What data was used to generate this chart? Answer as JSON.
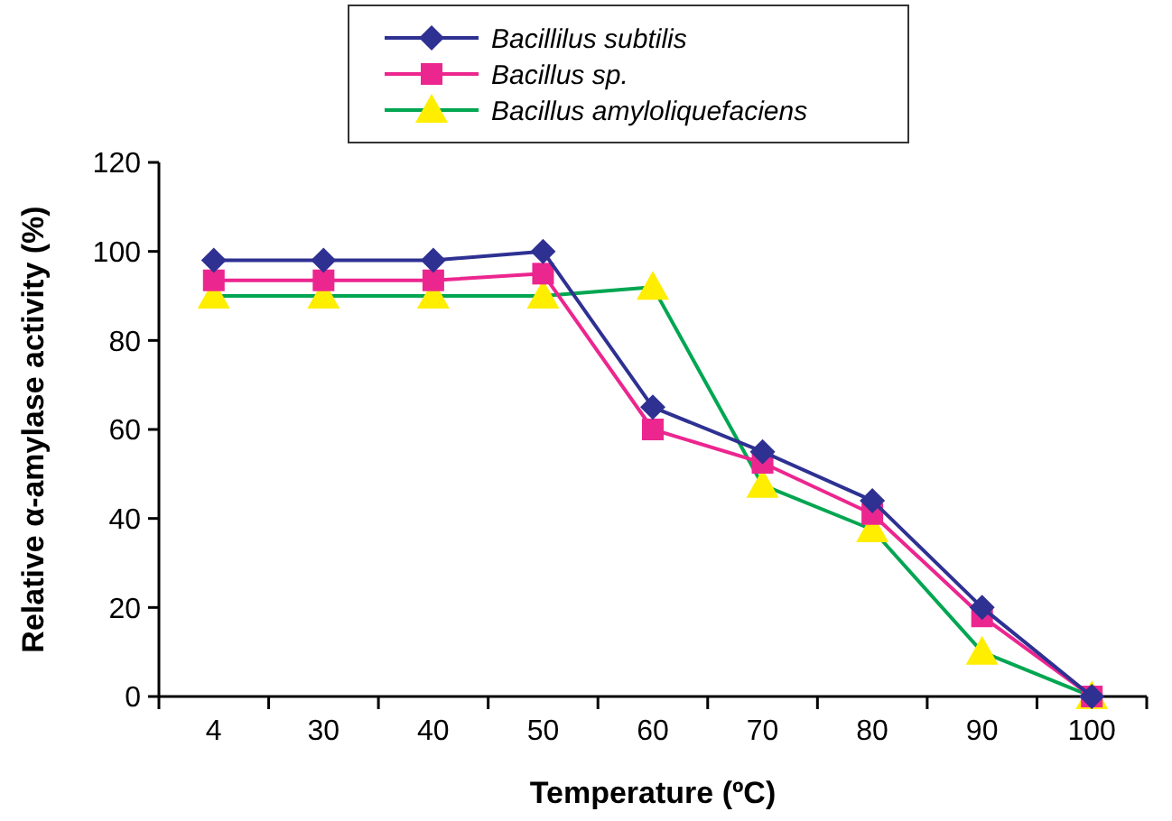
{
  "chart_data": {
    "type": "line",
    "xlabel": "Temperature (ºC)",
    "ylabel": "Relative α-amylase activity (%)",
    "categories": [
      "4",
      "30",
      "40",
      "50",
      "60",
      "70",
      "80",
      "90",
      "100"
    ],
    "ylim": [
      0,
      120
    ],
    "yticks": [
      0,
      20,
      40,
      60,
      80,
      100,
      120
    ],
    "legend": "top",
    "grid": false,
    "series": [
      {
        "name": "Bacillilus subtilis",
        "color": "#2e3192",
        "marker": "diamond",
        "values": [
          98,
          98,
          98,
          100,
          65,
          55,
          44,
          20,
          0
        ]
      },
      {
        "name": "Bacillus sp.",
        "color": "#ec268f",
        "marker": "square",
        "values": [
          93.5,
          93.5,
          93.5,
          95,
          60,
          52.5,
          41,
          18,
          0
        ]
      },
      {
        "name": "Bacillus amyloliquefaciens",
        "color": "#00a651",
        "marker": "triangle",
        "values": [
          90,
          90,
          90,
          90,
          92,
          47.5,
          37.5,
          10,
          0
        ]
      }
    ]
  }
}
